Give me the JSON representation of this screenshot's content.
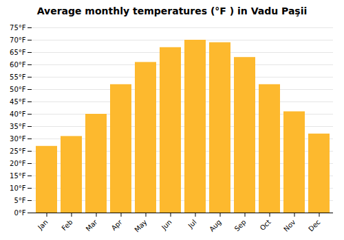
{
  "chart_data": {
    "type": "bar",
    "title": "Average monthly temperatures (°F ) in Vadu Paşii",
    "categories": [
      "Jan",
      "Feb",
      "Mar",
      "Apr",
      "May",
      "Jun",
      "Jul",
      "Aug",
      "Sep",
      "Oct",
      "Nov",
      "Dec"
    ],
    "values": [
      27,
      31,
      40,
      52,
      61,
      67,
      70,
      69,
      63,
      52,
      41,
      32
    ],
    "color": "#FDB92E",
    "ylim": [
      0,
      75
    ],
    "yticks": [
      {
        "value": 0,
        "label": "0°F"
      },
      {
        "value": 5,
        "label": "5°F"
      },
      {
        "value": 10,
        "label": "10°F"
      },
      {
        "value": 15,
        "label": "15°F"
      },
      {
        "value": 20,
        "label": "20°F"
      },
      {
        "value": 25,
        "label": "25°F"
      },
      {
        "value": 30,
        "label": "30°F"
      },
      {
        "value": 35,
        "label": "35°F"
      },
      {
        "value": 40,
        "label": "40°F"
      },
      {
        "value": 45,
        "label": "45°F"
      },
      {
        "value": 50,
        "label": "50°F"
      },
      {
        "value": 55,
        "label": "55°F"
      },
      {
        "value": 60,
        "label": "60°F"
      },
      {
        "value": 65,
        "label": "65°F"
      },
      {
        "value": 70,
        "label": "70°F"
      },
      {
        "value": 75,
        "label": "75°F"
      }
    ],
    "grid": true
  }
}
